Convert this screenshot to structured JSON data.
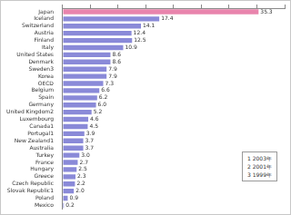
{
  "chart_data": {
    "type": "bar",
    "orientation": "horizontal",
    "categories": [
      "Japan",
      "Iceland",
      "Switzerland",
      "Austria",
      "Finland",
      "Italy",
      "United States",
      "Denmark",
      "Sweden3",
      "Korea",
      "OECD",
      "Belgium",
      "Spain",
      "Germany",
      "United Kingdom2",
      "Luxembourg",
      "Canada1",
      "Portugal1",
      "New Zealand1",
      "Australia",
      "Turkey",
      "France",
      "Hungary",
      "Greece",
      "Czech Republic",
      "Slovak Republic1",
      "Poland",
      "Mexico"
    ],
    "values": [
      35.3,
      17.4,
      14.1,
      12.4,
      12.5,
      10.9,
      8.6,
      8.6,
      7.9,
      7.9,
      7.3,
      6.6,
      6.2,
      6.0,
      5.2,
      4.6,
      4.5,
      3.9,
      3.7,
      3.7,
      3.0,
      2.7,
      2.5,
      2.3,
      2.2,
      2.0,
      0.9,
      0.2
    ],
    "value_labels": [
      "35.3",
      "17.4",
      "14.1",
      "12.4",
      "12.5",
      "10.9",
      "8.6",
      "8.6",
      "7.9",
      "7.9",
      "7.3",
      "6.6",
      "6.2",
      "6.0",
      "5.2",
      "4.6",
      "4.5",
      "3.9",
      "3.7",
      "3.7",
      "3.0",
      "2.7",
      "2.5",
      "2.3",
      "2.2",
      "2.0",
      "0.9",
      "0.2"
    ],
    "colors": [
      "#e884ac",
      "#8a8ad8",
      "#8a8ad8",
      "#8a8ad8",
      "#8a8ad8",
      "#8a8ad8",
      "#8a8ad8",
      "#8a8ad8",
      "#8a8ad8",
      "#8a8ad8",
      "#8a8ad8",
      "#8a8ad8",
      "#8a8ad8",
      "#8a8ad8",
      "#8a8ad8",
      "#8a8ad8",
      "#8a8ad8",
      "#8a8ad8",
      "#8a8ad8",
      "#8a8ad8",
      "#8a8ad8",
      "#8a8ad8",
      "#8a8ad8",
      "#8a8ad8",
      "#8a8ad8",
      "#8a8ad8",
      "#8a8ad8",
      "#8a8ad8"
    ],
    "xlim": [
      0,
      40
    ],
    "xticks": [
      0,
      5,
      10,
      15,
      20,
      25,
      30,
      35,
      40
    ],
    "tick_labels": "y",
    "grid": false,
    "data_labels": true,
    "annotations": [
      "1 2003年",
      "2 2001年",
      "3 1999年"
    ]
  }
}
